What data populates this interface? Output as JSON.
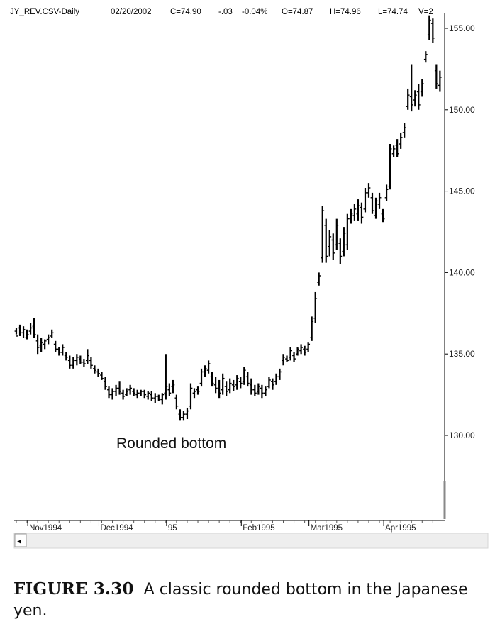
{
  "header": {
    "symbol": "JY_REV.CSV-Daily",
    "date": "02/20/2002",
    "close": "C=74.90",
    "change": "-.03",
    "change_pct": "-0.04%",
    "open": "O=74.87",
    "high": "H=74.96",
    "low": "L=74.74",
    "volume": "V=2"
  },
  "annotation": "Rounded bottom",
  "caption": {
    "label": "FIGURE 3.30",
    "text": "A classic rounded bottom in the Japanese yen."
  },
  "scroll_left_glyph": "◂",
  "chart_data": {
    "type": "ohlc",
    "title": "",
    "ylim": [
      125,
      156.5
    ],
    "yticks": [
      130,
      135,
      140,
      145,
      150,
      155
    ],
    "ytick_labels": [
      "130.00",
      "135.00",
      "140.00",
      "145.00",
      "150.00",
      "155.00"
    ],
    "xtick_labels": [
      {
        "label": "Nov1994",
        "index": 4
      },
      {
        "label": "Dec1994",
        "index": 24
      },
      {
        "label": "95",
        "index": 43
      },
      {
        "label": "Feb1995",
        "index": 64
      },
      {
        "label": "Mar1995",
        "index": 83
      },
      {
        "label": "Apr1995",
        "index": 104
      }
    ],
    "grid": false,
    "bars": [
      [
        136.6,
        136.2,
        136.4,
        136.1
      ],
      [
        136.8,
        136.1,
        136.6,
        136.3
      ],
      [
        136.7,
        136.0,
        136.3,
        136.5
      ],
      [
        136.5,
        135.9,
        136.0,
        136.2
      ],
      [
        136.9,
        136.2,
        136.4,
        136.6
      ],
      [
        137.2,
        136.0,
        136.7,
        136.2
      ],
      [
        136.2,
        135.0,
        135.8,
        135.4
      ],
      [
        136.0,
        135.1,
        135.5,
        135.7
      ],
      [
        135.9,
        135.3,
        135.6,
        135.8
      ],
      [
        136.2,
        135.6,
        135.9,
        136.0
      ],
      [
        136.5,
        136.0,
        136.1,
        136.3
      ],
      [
        135.8,
        135.1,
        135.6,
        135.3
      ],
      [
        135.4,
        134.9,
        135.3,
        135.1
      ],
      [
        135.6,
        134.9,
        135.1,
        135.4
      ],
      [
        135.1,
        134.6,
        134.9,
        134.8
      ],
      [
        134.9,
        134.1,
        134.6,
        134.3
      ],
      [
        134.8,
        134.1,
        134.3,
        134.6
      ],
      [
        135.0,
        134.3,
        134.6,
        134.8
      ],
      [
        134.9,
        134.4,
        134.7,
        134.5
      ],
      [
        134.7,
        134.2,
        134.5,
        134.4
      ],
      [
        135.3,
        134.4,
        134.6,
        134.9
      ],
      [
        134.8,
        134.1,
        134.6,
        134.3
      ],
      [
        134.3,
        133.8,
        134.1,
        134.0
      ],
      [
        134.1,
        133.6,
        133.9,
        133.8
      ],
      [
        133.9,
        133.4,
        133.7,
        133.5
      ],
      [
        133.6,
        132.8,
        133.3,
        133.0
      ],
      [
        133.0,
        132.3,
        132.8,
        132.5
      ],
      [
        132.9,
        132.2,
        132.5,
        132.7
      ],
      [
        133.1,
        132.4,
        132.7,
        132.9
      ],
      [
        133.3,
        132.5,
        132.9,
        132.7
      ],
      [
        132.8,
        132.2,
        132.6,
        132.4
      ],
      [
        132.9,
        132.4,
        132.5,
        132.7
      ],
      [
        133.1,
        132.5,
        132.8,
        132.9
      ],
      [
        132.9,
        132.4,
        132.7,
        132.6
      ],
      [
        132.8,
        132.3,
        132.5,
        132.6
      ],
      [
        132.8,
        132.4,
        132.6,
        132.7
      ],
      [
        132.8,
        132.3,
        132.7,
        132.5
      ],
      [
        132.7,
        132.2,
        132.4,
        132.6
      ],
      [
        132.7,
        132.1,
        132.5,
        132.3
      ],
      [
        132.6,
        132.0,
        132.3,
        132.4
      ],
      [
        132.5,
        132.1,
        132.4,
        132.2
      ],
      [
        132.6,
        131.9,
        132.2,
        132.5
      ],
      [
        135.0,
        132.2,
        132.6,
        133.0
      ],
      [
        133.2,
        132.4,
        132.8,
        132.6
      ],
      [
        133.4,
        132.6,
        133.0,
        133.1
      ],
      [
        132.5,
        131.6,
        132.3,
        131.8
      ],
      [
        131.6,
        130.9,
        131.3,
        131.1
      ],
      [
        131.5,
        130.9,
        131.1,
        131.3
      ],
      [
        131.7,
        131.0,
        131.3,
        131.5
      ],
      [
        133.2,
        131.6,
        131.8,
        132.9
      ],
      [
        132.9,
        132.3,
        132.6,
        132.7
      ],
      [
        133.0,
        132.5,
        132.8,
        132.7
      ],
      [
        134.1,
        133.0,
        133.2,
        133.9
      ],
      [
        134.3,
        133.6,
        133.9,
        134.1
      ],
      [
        134.6,
        133.8,
        134.0,
        134.4
      ],
      [
        133.9,
        133.0,
        133.6,
        133.2
      ],
      [
        133.6,
        132.6,
        133.1,
        132.9
      ],
      [
        133.4,
        132.3,
        132.9,
        132.6
      ],
      [
        133.8,
        132.5,
        132.8,
        133.5
      ],
      [
        133.3,
        132.4,
        133.0,
        132.7
      ],
      [
        133.5,
        132.6,
        132.8,
        133.2
      ],
      [
        133.4,
        132.7,
        133.1,
        133.0
      ],
      [
        133.7,
        132.8,
        133.1,
        133.5
      ],
      [
        133.6,
        132.9,
        133.3,
        133.2
      ],
      [
        134.2,
        133.1,
        133.3,
        134.0
      ],
      [
        133.9,
        133.0,
        133.6,
        133.2
      ],
      [
        133.5,
        132.5,
        133.1,
        132.8
      ],
      [
        133.1,
        132.4,
        132.8,
        132.6
      ],
      [
        133.2,
        132.5,
        132.7,
        133.0
      ],
      [
        133.1,
        132.3,
        132.9,
        132.6
      ],
      [
        133.0,
        132.4,
        132.6,
        132.8
      ],
      [
        133.6,
        132.9,
        133.0,
        133.4
      ],
      [
        133.5,
        132.8,
        133.3,
        133.1
      ],
      [
        133.8,
        133.1,
        133.3,
        133.6
      ],
      [
        134.1,
        133.4,
        133.6,
        133.9
      ],
      [
        135.0,
        134.3,
        134.6,
        134.8
      ],
      [
        134.9,
        134.5,
        134.7,
        134.6
      ],
      [
        135.4,
        134.6,
        134.8,
        135.2
      ],
      [
        135.1,
        134.5,
        134.9,
        134.7
      ],
      [
        135.4,
        134.9,
        135.0,
        135.3
      ],
      [
        135.6,
        135.0,
        135.2,
        135.4
      ],
      [
        135.5,
        134.9,
        135.3,
        135.1
      ],
      [
        135.7,
        135.1,
        135.3,
        135.6
      ],
      [
        137.3,
        135.8,
        136.0,
        137.0
      ],
      [
        138.8,
        136.9,
        137.2,
        138.4
      ],
      [
        140.0,
        139.2,
        139.4,
        139.8
      ],
      [
        144.1,
        140.6,
        140.9,
        143.8
      ],
      [
        143.3,
        140.6,
        142.9,
        141.0
      ],
      [
        142.6,
        141.0,
        141.6,
        142.2
      ],
      [
        142.4,
        140.8,
        142.0,
        141.2
      ],
      [
        143.3,
        141.4,
        141.7,
        142.9
      ],
      [
        142.1,
        140.5,
        141.8,
        141.0
      ],
      [
        142.8,
        141.0,
        141.3,
        142.4
      ],
      [
        143.6,
        141.4,
        141.7,
        143.3
      ],
      [
        143.9,
        143.0,
        143.3,
        143.6
      ],
      [
        144.2,
        143.2,
        143.5,
        143.9
      ],
      [
        144.5,
        143.2,
        143.6,
        144.1
      ],
      [
        144.3,
        143.0,
        144.0,
        143.4
      ],
      [
        145.2,
        143.7,
        143.9,
        144.9
      ],
      [
        145.5,
        144.6,
        144.9,
        145.2
      ],
      [
        144.9,
        143.6,
        144.6,
        143.8
      ],
      [
        144.6,
        143.3,
        143.5,
        144.4
      ],
      [
        144.9,
        143.9,
        144.2,
        144.6
      ],
      [
        143.9,
        143.1,
        143.6,
        143.3
      ],
      [
        145.4,
        144.4,
        144.6,
        145.1
      ],
      [
        147.9,
        145.1,
        145.3,
        147.6
      ],
      [
        147.8,
        147.1,
        147.3,
        147.6
      ],
      [
        148.2,
        147.1,
        147.8,
        147.3
      ],
      [
        148.6,
        147.6,
        147.9,
        148.3
      ],
      [
        149.2,
        148.3,
        148.6,
        148.9
      ],
      [
        151.3,
        150.0,
        150.2,
        150.9
      ],
      [
        152.8,
        149.9,
        150.8,
        150.3
      ],
      [
        151.2,
        150.2,
        150.6,
        150.9
      ],
      [
        151.6,
        150.0,
        151.1,
        150.3
      ],
      [
        151.9,
        150.8,
        151.1,
        151.6
      ],
      [
        153.6,
        152.9,
        153.1,
        153.4
      ],
      [
        155.8,
        154.3,
        154.6,
        155.5
      ],
      [
        155.6,
        154.1,
        155.3,
        154.4
      ],
      [
        152.8,
        151.3,
        152.4,
        151.6
      ],
      [
        152.4,
        151.1,
        151.5,
        152.0
      ]
    ]
  }
}
